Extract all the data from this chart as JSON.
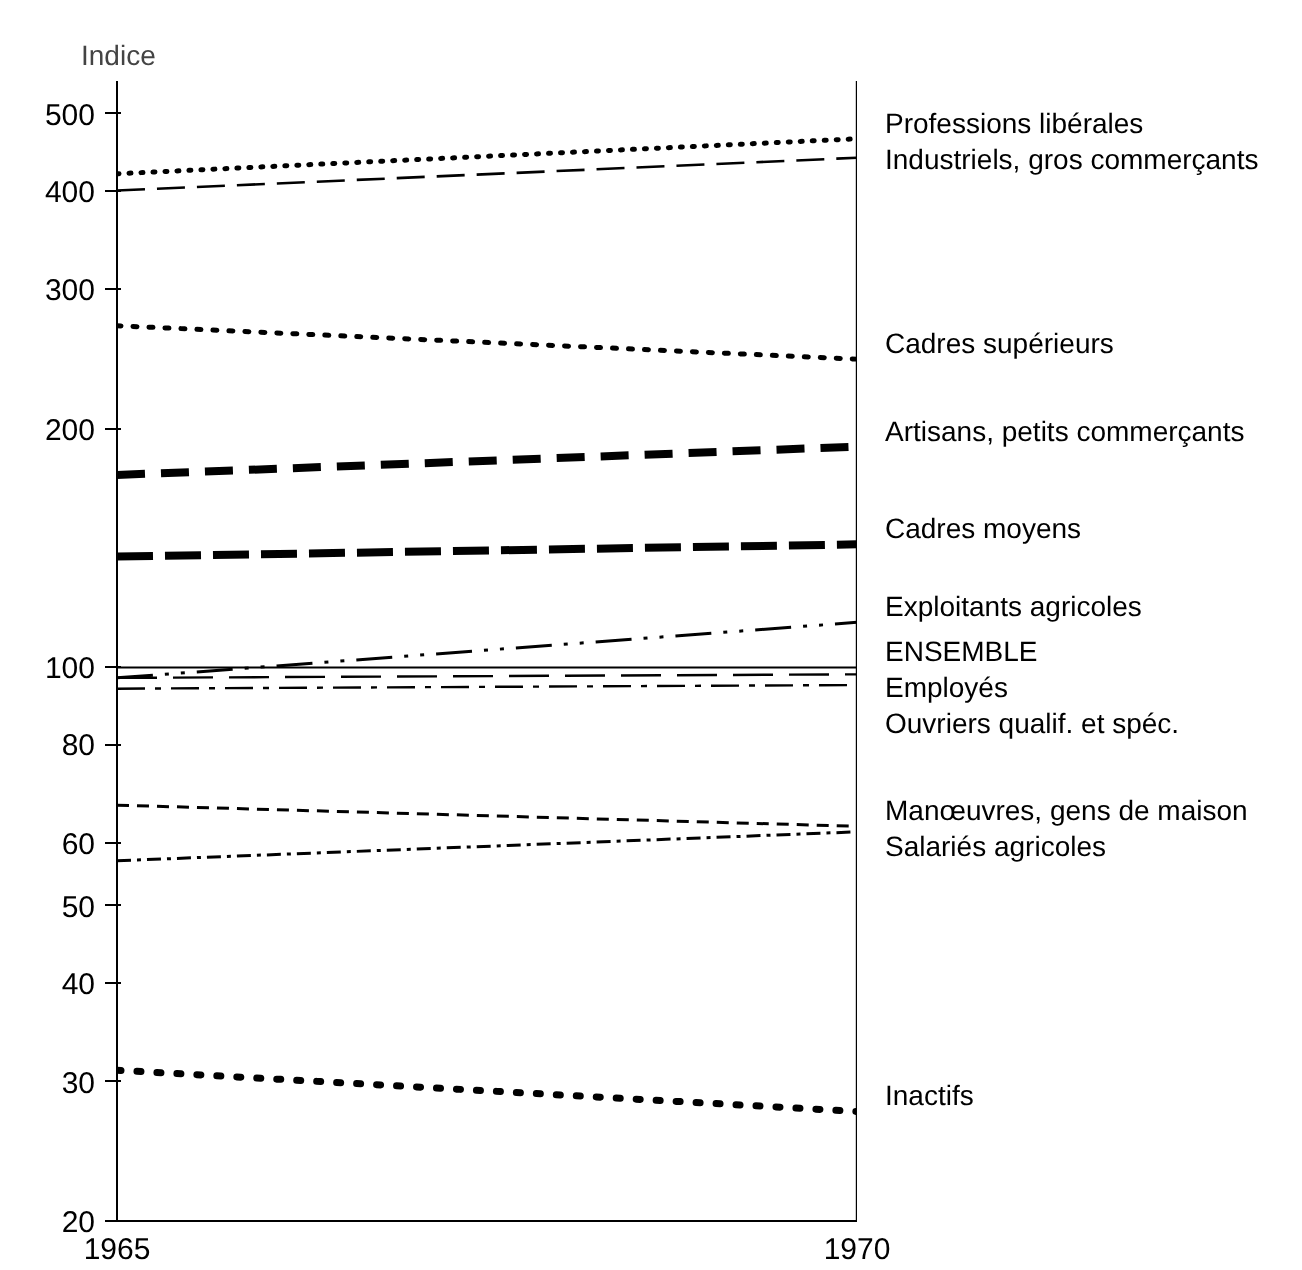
{
  "chart_data": {
    "type": "line",
    "ylabel": "Indice",
    "x": [
      1965,
      1970
    ],
    "xlim": [
      1965,
      1970
    ],
    "xticks": [
      1965,
      1970
    ],
    "ylim": [
      20,
      550
    ],
    "yticks": [
      20,
      30,
      40,
      50,
      60,
      80,
      100,
      200,
      300,
      400,
      500
    ],
    "log": true,
    "grid": false,
    "legend": false,
    "marker": "none",
    "ref_lines": [
      {
        "axis": "x",
        "value": 1970
      }
    ],
    "series": [
      {
        "name": "Professions libérales",
        "color": "#000000",
        "line_style": "dotted",
        "values": [
          420,
          465
        ]
      },
      {
        "name": "Industriels, gros commerçants",
        "color": "#000000",
        "line_style": "dashed",
        "values": [
          400,
          440
        ]
      },
      {
        "name": "Cadres supérieurs",
        "color": "#000000",
        "line_style": "dotted",
        "values": [
          270,
          245
        ]
      },
      {
        "name": "Artisans, petits commerçants",
        "color": "#000000",
        "line_style": "dashed",
        "values": [
          175,
          190
        ]
      },
      {
        "name": "Cadres moyens",
        "color": "#000000",
        "line_style": "dashed",
        "values": [
          138,
          143
        ]
      },
      {
        "name": "Exploitants agricoles",
        "color": "#000000",
        "line_style": "dashed",
        "values": [
          97,
          114
        ]
      },
      {
        "name": "ENSEMBLE",
        "color": "#000000",
        "line_style": "solid",
        "values": [
          100,
          100
        ]
      },
      {
        "name": "Employés",
        "color": "#000000",
        "line_style": "dashed",
        "values": [
          97,
          98
        ]
      },
      {
        "name": "Ouvriers qualif. et spéc.",
        "color": "#000000",
        "line_style": "dashed",
        "values": [
          94,
          95
        ]
      },
      {
        "name": "Manœuvres, gens de maison",
        "color": "#000000",
        "line_style": "dashed",
        "values": [
          67,
          63
        ]
      },
      {
        "name": "Salariés agricoles",
        "color": "#000000",
        "line_style": "dashed",
        "values": [
          57,
          62
        ]
      },
      {
        "name": "Inactifs",
        "color": "#000000",
        "line_style": "dotted",
        "values": [
          31,
          27.5
        ]
      }
    ]
  }
}
